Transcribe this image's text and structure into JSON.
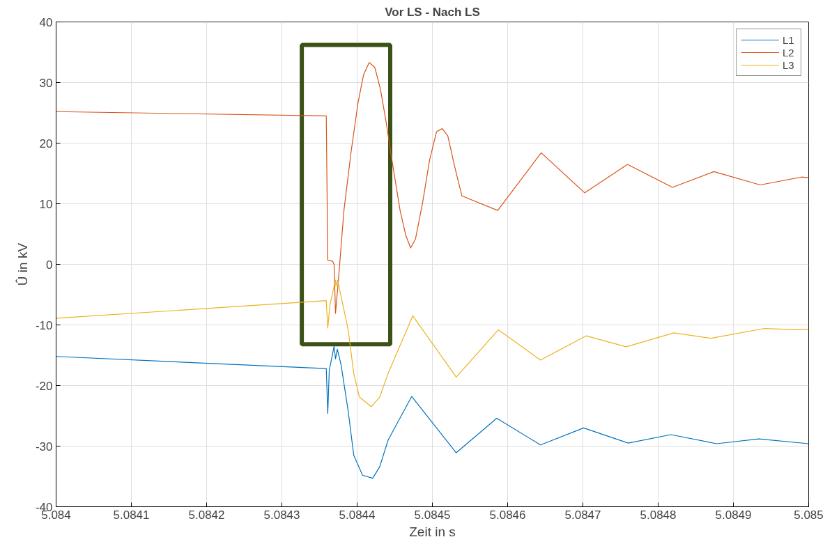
{
  "chart_data": {
    "type": "line",
    "title": "Vor LS - Nach LS",
    "xlabel": "Zeit in s",
    "ylabel": "Û in kV",
    "xlim": [
      5.084,
      5.085
    ],
    "xticks": [
      5.084,
      5.0841,
      5.0842,
      5.0843,
      5.0844,
      5.0845,
      5.0846,
      5.0847,
      5.0848,
      5.0849,
      5.085
    ],
    "ylim": [
      -40,
      40
    ],
    "yticks": [
      -40,
      -30,
      -20,
      -10,
      0,
      10,
      20,
      30,
      40
    ],
    "grid": true,
    "legend": "top right",
    "line_style": "solid",
    "series": [
      {
        "name": "L1",
        "color": "#0072bd",
        "x": [
          5.084,
          5.084359,
          5.084361,
          5.084363,
          5.0843675,
          5.0843694,
          5.0843713,
          5.0843737,
          5.0843787,
          5.0843881,
          5.0843955,
          5.0844072,
          5.0844207,
          5.08443,
          5.0844412,
          5.0844725,
          5.0845317,
          5.0845855,
          5.0846437,
          5.084701,
          5.0847603,
          5.084817,
          5.0848778,
          5.0849338,
          5.085
        ],
        "values": [
          -15.2,
          -17.2,
          -24.6,
          -17.5,
          -14.7,
          -13.5,
          -15.6,
          -14,
          -16.6,
          -24.2,
          -31.5,
          -34.8,
          -35.3,
          -33.4,
          -29,
          -21.8,
          -31.1,
          -25.4,
          -29.8,
          -27,
          -29.5,
          -28.1,
          -29.6,
          -28.8,
          -29.6
        ]
      },
      {
        "name": "L2",
        "color": "#d95319",
        "x": [
          5.084,
          5.084359,
          5.084361,
          5.0843675,
          5.0843694,
          5.0843713,
          5.084375,
          5.0843825,
          5.0843918,
          5.0844011,
          5.0844086,
          5.084416,
          5.0844235,
          5.084431,
          5.0844384,
          5.0844478,
          5.0844571,
          5.0844646,
          5.0844711,
          5.0844776,
          5.0844869,
          5.0844963,
          5.0845056,
          5.0845131,
          5.0845205,
          5.0845299,
          5.0845392,
          5.0845868,
          5.0846446,
          5.0847024,
          5.0847593,
          5.084819,
          5.0848741,
          5.0849356,
          5.0849907,
          5.085
        ],
        "values": [
          25.2,
          24.5,
          0.7,
          0.5,
          0,
          -8.1,
          -2.8,
          8.9,
          18.4,
          26.6,
          31.3,
          33.3,
          32.5,
          28.9,
          23.6,
          16,
          8.9,
          4.8,
          2.7,
          4.2,
          10.1,
          17.2,
          21.9,
          22.4,
          21.2,
          16,
          11.3,
          8.9,
          18.4,
          11.8,
          16.5,
          12.7,
          15.3,
          13.1,
          14.4,
          14.3
        ]
      },
      {
        "name": "L3",
        "color": "#edb120",
        "x": [
          5.084,
          5.084359,
          5.084361,
          5.084364,
          5.0843713,
          5.0843718,
          5.0843741,
          5.0843881,
          5.0843955,
          5.084403,
          5.0844188,
          5.08443,
          5.0844412,
          5.0844739,
          5.0845317,
          5.0845877,
          5.0846437,
          5.0847043,
          5.0847575,
          5.0848209,
          5.0848703,
          5.0849403,
          5.0849869,
          5.085
        ],
        "values": [
          -8.9,
          -6.0,
          -10.5,
          -6.6,
          -2.6,
          -3.6,
          -2.6,
          -10.8,
          -18,
          -21.9,
          -23.5,
          -21.9,
          -18,
          -8.5,
          -18.6,
          -10.8,
          -15.8,
          -11.8,
          -13.6,
          -11.3,
          -12.2,
          -10.6,
          -10.8,
          -10.7
        ]
      }
    ]
  }
}
